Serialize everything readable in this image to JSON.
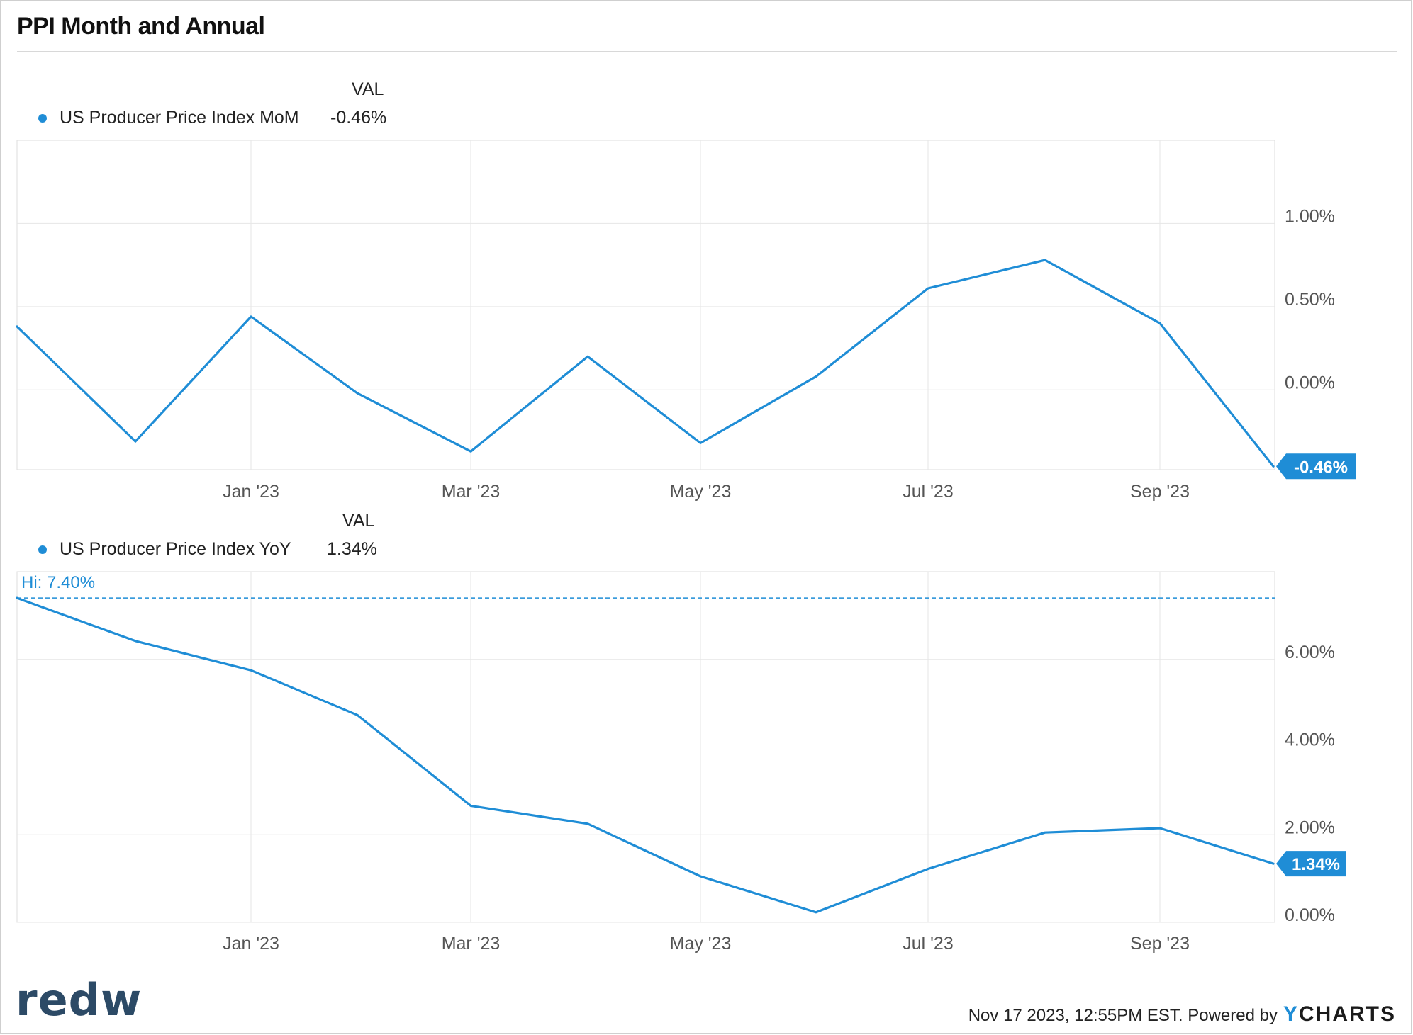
{
  "title": "PPI Month and Annual",
  "colors": {
    "series": "#1f8dd6",
    "grid": "#e6e6e6",
    "axis_text": "#555555",
    "brand": "#2c4a66"
  },
  "footer": {
    "timestamp": "Nov 17 2023, 12:55PM EST. Powered by",
    "brand": "YCHARTS",
    "brand_y": "Y",
    "brand_rest": "CHARTS"
  },
  "logo": "redw",
  "panels": [
    {
      "legend_header": "VAL",
      "series_name": "US Producer Price Index MoM",
      "last_value": "-0.46%",
      "end_label": "-0.46%"
    },
    {
      "legend_header": "VAL",
      "series_name": "US Producer Price Index YoY",
      "last_value": "1.34%",
      "end_label": "1.34%",
      "hi_label": "Hi: 7.40%"
    }
  ],
  "chart_data": [
    {
      "type": "line",
      "title": "",
      "series": [
        {
          "name": "US Producer Price Index MoM",
          "x": [
            "2022-11",
            "2022-12",
            "2023-01",
            "2023-02",
            "2023-03",
            "2023-04",
            "2023-05",
            "2023-06",
            "2023-07",
            "2023-08",
            "2023-09",
            "2023-10"
          ],
          "values": [
            0.38,
            -0.31,
            0.44,
            -0.02,
            -0.37,
            0.2,
            -0.32,
            0.08,
            0.61,
            0.78,
            0.4,
            -0.46
          ]
        }
      ],
      "x_ticks": [
        "Jan '23",
        "Mar '23",
        "May '23",
        "Jul '23",
        "Sep '23"
      ],
      "x_tick_dates": [
        "2023-01",
        "2023-03",
        "2023-05",
        "2023-07",
        "2023-09"
      ],
      "y_ticks": [
        "1.00%",
        "0.50%",
        "0.00%"
      ],
      "y_tick_values": [
        1.0,
        0.5,
        0.0
      ],
      "ylim": [
        -0.48,
        1.5
      ],
      "grid": true,
      "last_value_label": "-0.46%"
    },
    {
      "type": "line",
      "title": "",
      "series": [
        {
          "name": "US Producer Price Index YoY",
          "x": [
            "2022-11",
            "2022-12",
            "2023-01",
            "2023-02",
            "2023-03",
            "2023-04",
            "2023-05",
            "2023-06",
            "2023-07",
            "2023-08",
            "2023-09",
            "2023-10"
          ],
          "values": [
            7.4,
            6.42,
            5.75,
            4.73,
            2.66,
            2.25,
            1.05,
            0.23,
            1.22,
            2.05,
            2.15,
            1.34
          ]
        }
      ],
      "x_ticks": [
        "Jan '23",
        "Mar '23",
        "May '23",
        "Jul '23",
        "Sep '23"
      ],
      "x_tick_dates": [
        "2023-01",
        "2023-03",
        "2023-05",
        "2023-07",
        "2023-09"
      ],
      "y_ticks": [
        "6.00%",
        "4.00%",
        "2.00%",
        "0.00%"
      ],
      "y_tick_values": [
        6.0,
        4.0,
        2.0,
        0.0
      ],
      "ylim": [
        0,
        8.0
      ],
      "grid": true,
      "hi_value": 7.4,
      "last_value_label": "1.34%"
    }
  ]
}
